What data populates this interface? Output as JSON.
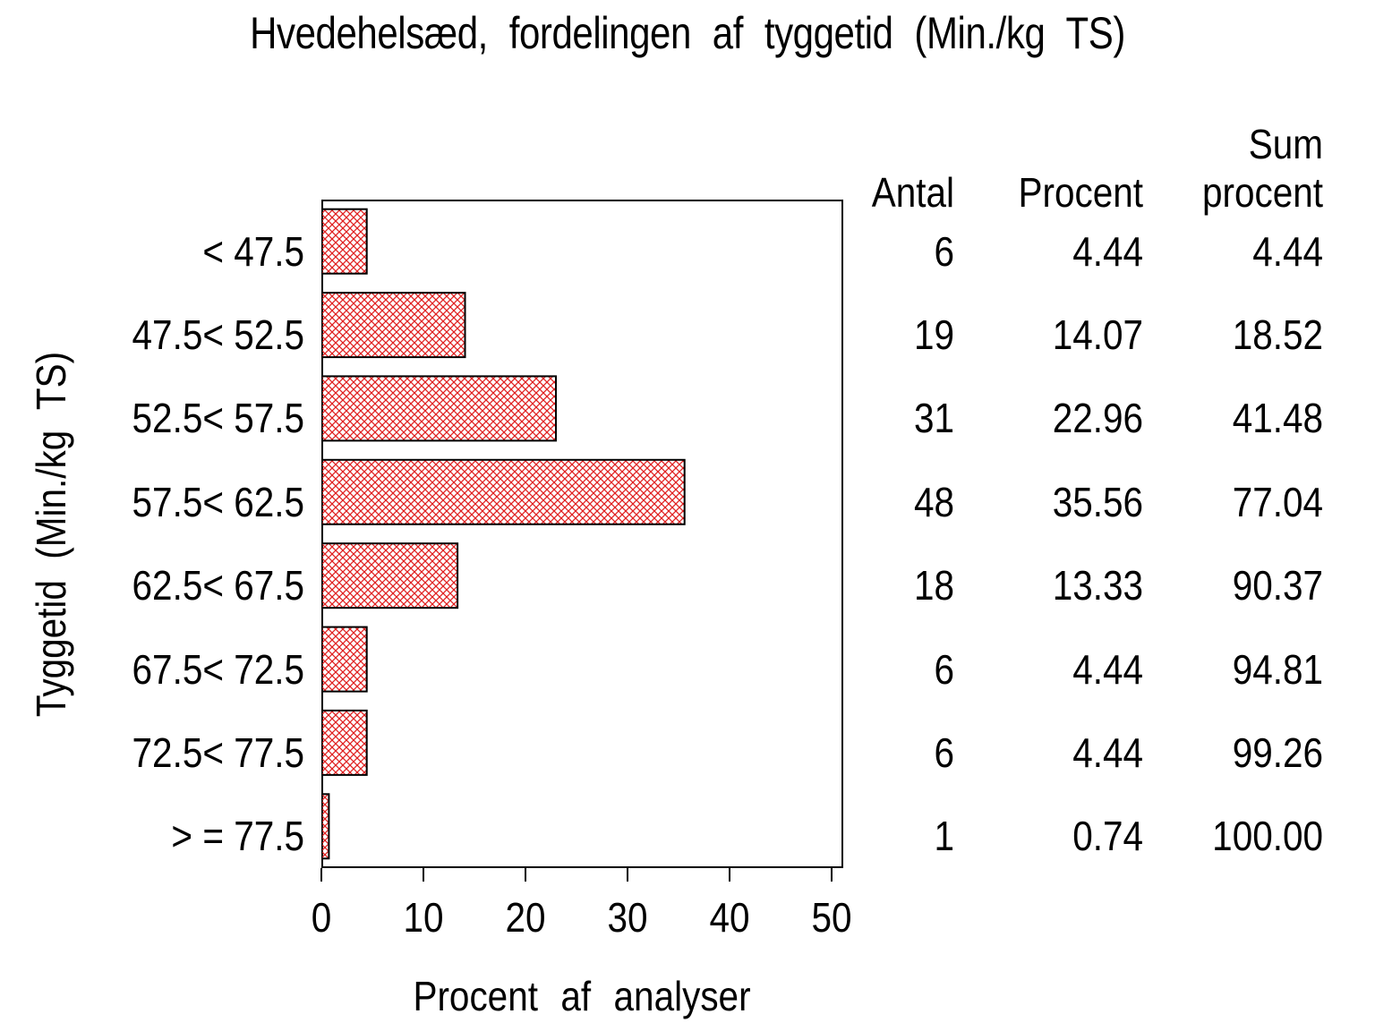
{
  "chart_data": {
    "type": "bar",
    "orientation": "horizontal",
    "title": "Hvedehelsæd, fordelingen af tyggetid (Min./kg TS)",
    "xlabel": "Procent af analyser",
    "ylabel": "Tyggetid (Min./kg TS)",
    "categories": [
      "< 47.5",
      "47.5< 52.5",
      "52.5< 57.5",
      "57.5< 62.5",
      "62.5< 67.5",
      "67.5< 72.5",
      "72.5< 77.5",
      "> = 77.5"
    ],
    "series": [
      {
        "name": "Antal",
        "values": [
          6,
          19,
          31,
          48,
          18,
          6,
          6,
          1
        ]
      },
      {
        "name": "Procent",
        "values": [
          4.44,
          14.07,
          22.96,
          35.56,
          13.33,
          4.44,
          4.44,
          0.74
        ]
      },
      {
        "name": "Sum procent",
        "values": [
          4.44,
          18.52,
          41.48,
          77.04,
          90.37,
          94.81,
          99.26,
          100.0
        ]
      }
    ],
    "plotted_series": "Procent",
    "xlim": [
      0,
      51.1
    ],
    "xticks": [
      0,
      10,
      20,
      30,
      40,
      50
    ],
    "grid": false,
    "legend": false,
    "bar_style": {
      "fill_pattern": "diagonal-crosshatch",
      "pattern_color": "#e02020",
      "border_color": "#000000",
      "bar_background": "#ffffff"
    }
  },
  "table": {
    "headers": {
      "antal": "Antal",
      "procent": "Procent",
      "sum_line1": "Sum",
      "sum_line2": "procent"
    },
    "rows": [
      {
        "antal": "6",
        "procent": "4.44",
        "sum": "4.44"
      },
      {
        "antal": "19",
        "procent": "14.07",
        "sum": "18.52"
      },
      {
        "antal": "31",
        "procent": "22.96",
        "sum": "41.48"
      },
      {
        "antal": "48",
        "procent": "35.56",
        "sum": "77.04"
      },
      {
        "antal": "18",
        "procent": "13.33",
        "sum": "90.37"
      },
      {
        "antal": "6",
        "procent": "4.44",
        "sum": "94.81"
      },
      {
        "antal": "6",
        "procent": "4.44",
        "sum": "99.26"
      },
      {
        "antal": "1",
        "procent": "0.74",
        "sum": "100.00"
      }
    ]
  }
}
